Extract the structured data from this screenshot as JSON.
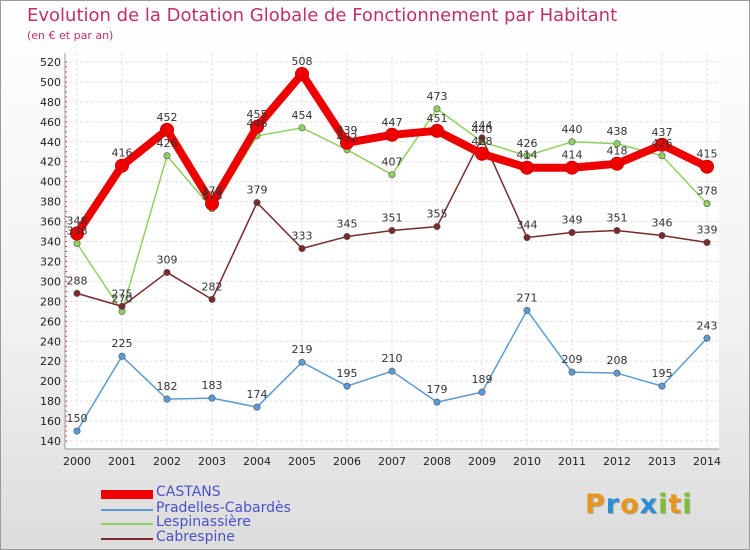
{
  "title": "Evolution de la Dotation Globale de Fonctionnement par Habitant",
  "subtitle": "(en € et par an)",
  "logo": {
    "text": "Proxiti",
    "letters": [
      "P",
      "r",
      "o",
      "x",
      "i",
      "t",
      "i"
    ],
    "colors": [
      "#e8961e",
      "#2a8fd6",
      "#e8961e",
      "#2a8fd6",
      "#7bbf2e",
      "#e8961e",
      "#7bbf2e"
    ]
  },
  "chart_data": {
    "type": "line",
    "title": "Evolution de la Dotation Globale de Fonctionnement par Habitant",
    "subtitle": "(en € et par an)",
    "xlabel": "",
    "ylabel": "",
    "ylim": [
      140,
      520
    ],
    "ytick_step": 20,
    "grid": true,
    "categories": [
      "2000",
      "2001",
      "2002",
      "2003",
      "2004",
      "2005",
      "2006",
      "2007",
      "2008",
      "2009",
      "2010",
      "2011",
      "2012",
      "2013",
      "2014"
    ],
    "series": [
      {
        "name": "CASTANS",
        "color": "#ee0000",
        "values": [
          348,
          416,
          452,
          378,
          455,
          508,
          439,
          447,
          451,
          428,
          414,
          414,
          418,
          437,
          415
        ],
        "labels": [
          "348",
          "416",
          "452",
          "378",
          "455",
          "508",
          "439",
          "447",
          "451",
          "428",
          "414",
          "414",
          "418",
          "437",
          "415"
        ]
      },
      {
        "name": "Pradelles-Cabardès",
        "color": "#5b9bd5",
        "values": [
          150,
          225,
          182,
          183,
          174,
          219,
          195,
          210,
          179,
          189,
          271,
          209,
          208,
          195,
          243
        ],
        "labels": [
          "150",
          "225",
          "182",
          "183",
          "174",
          "219",
          "195",
          "210",
          "179",
          "189",
          "271",
          "209",
          "208",
          "195",
          "243"
        ]
      },
      {
        "name": "Lespinassière",
        "color": "#8fd060",
        "values": [
          338,
          270,
          426,
          373,
          446,
          454,
          432,
          407,
          473,
          440,
          426,
          440,
          438,
          426,
          378
        ],
        "labels": [
          "338",
          "270",
          "426",
          "373",
          "446",
          "454",
          "432",
          "407",
          "473",
          "440",
          "426",
          "440",
          "438",
          "426",
          "378"
        ]
      },
      {
        "name": "Cabrespine",
        "color": "#7a2a2a",
        "values": [
          288,
          275,
          309,
          282,
          379,
          333,
          345,
          351,
          355,
          444,
          344,
          349,
          351,
          346,
          339
        ],
        "labels": [
          "288",
          "275",
          "309",
          "282",
          "379",
          "333",
          "345",
          "351",
          "355",
          "444",
          "344",
          "349",
          "351",
          "346",
          "339"
        ]
      }
    ],
    "legend": [
      "CASTANS",
      "Pradelles-Cabardès",
      "Lespinassière",
      "Cabrespine"
    ],
    "legend_position": "bottom-left"
  }
}
